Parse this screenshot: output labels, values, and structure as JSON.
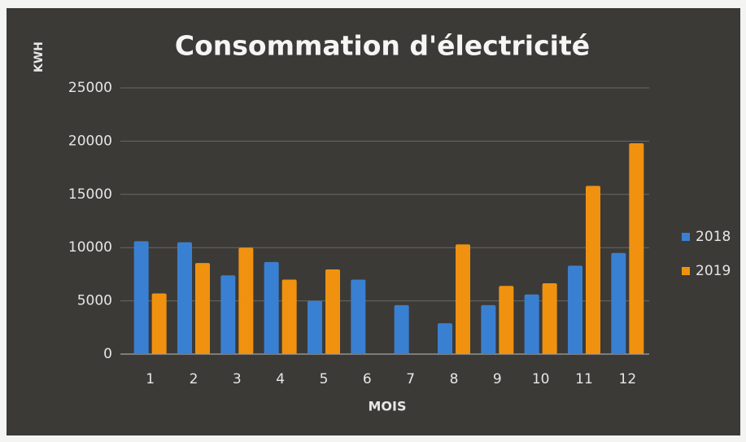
{
  "chart_data": {
    "type": "bar",
    "title": "Consommation d'électricité",
    "x_label": "MOIS",
    "y_label": "KWH",
    "categories": [
      "1",
      "2",
      "3",
      "4",
      "5",
      "6",
      "7",
      "8",
      "9",
      "10",
      "11",
      "12"
    ],
    "series": [
      {
        "name": "2018",
        "color": "#3a80d2",
        "values": [
          10600,
          10500,
          7400,
          8650,
          5000,
          7000,
          4600,
          2900,
          4600,
          5600,
          8300,
          9500
        ]
      },
      {
        "name": "2019",
        "color": "#f0920f",
        "values": [
          5700,
          8550,
          10000,
          7000,
          7950,
          null,
          null,
          10300,
          6400,
          6650,
          15800,
          19800
        ]
      }
    ],
    "ylim": [
      0,
      25000
    ],
    "yticks": [
      0,
      5000,
      10000,
      15000,
      20000,
      25000
    ],
    "grid": true,
    "legend": "right"
  }
}
